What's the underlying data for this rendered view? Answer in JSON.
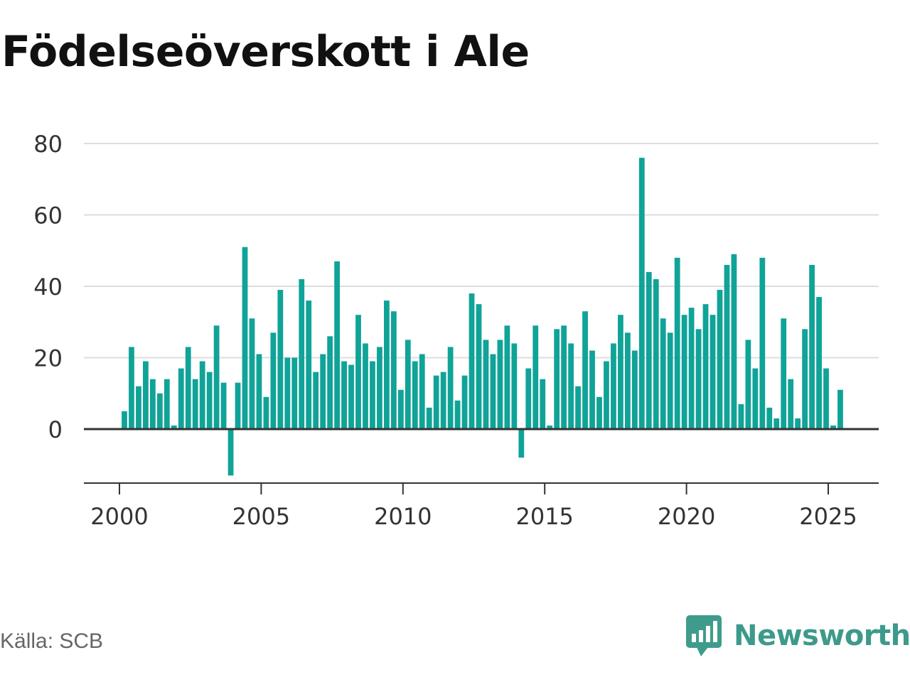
{
  "header": {
    "title": "Födelseöverskott i Ale"
  },
  "footer": {
    "source": "Källa: SCB",
    "brand": "Newsworthy"
  },
  "colors": {
    "bar": "#10a398",
    "grid": "#dddddd",
    "axis": "#333333",
    "brand": "#3d9a8a",
    "logo_bg": "#3f9c8c"
  },
  "icons": {
    "logo": "chat-bubble-bar-chart-icon"
  },
  "chart_data": {
    "type": "bar",
    "title": "Födelseöverskott i Ale",
    "xlabel": "",
    "ylabel": "",
    "ylim": [
      -15,
      80
    ],
    "xlim": [
      1999.5,
      2026.8
    ],
    "grid": true,
    "y_ticks": [
      0,
      20,
      40,
      60,
      80
    ],
    "x_ticks": [
      2000,
      2005,
      2010,
      2015,
      2020,
      2025
    ],
    "x_tick_labels": [
      "2000",
      "2005",
      "2010",
      "2015",
      "2020",
      "2025"
    ],
    "x": [
      "2000Q1",
      "2000Q2",
      "2000Q3",
      "2000Q4",
      "2001Q1",
      "2001Q2",
      "2001Q3",
      "2001Q4",
      "2002Q1",
      "2002Q2",
      "2002Q3",
      "2002Q4",
      "2003Q1",
      "2003Q2",
      "2003Q3",
      "2003Q4",
      "2004Q1",
      "2004Q2",
      "2004Q3",
      "2004Q4",
      "2005Q1",
      "2005Q2",
      "2005Q3",
      "2005Q4",
      "2006Q1",
      "2006Q2",
      "2006Q3",
      "2006Q4",
      "2007Q1",
      "2007Q2",
      "2007Q3",
      "2007Q4",
      "2008Q1",
      "2008Q2",
      "2008Q3",
      "2008Q4",
      "2009Q1",
      "2009Q2",
      "2009Q3",
      "2009Q4",
      "2010Q1",
      "2010Q2",
      "2010Q3",
      "2010Q4",
      "2011Q1",
      "2011Q2",
      "2011Q3",
      "2011Q4",
      "2012Q1",
      "2012Q2",
      "2012Q3",
      "2012Q4",
      "2013Q1",
      "2013Q2",
      "2013Q3",
      "2013Q4",
      "2014Q1",
      "2014Q2",
      "2014Q3",
      "2014Q4",
      "2015Q1",
      "2015Q2",
      "2015Q3",
      "2015Q4",
      "2016Q1",
      "2016Q2",
      "2016Q3",
      "2016Q4",
      "2017Q1",
      "2017Q2",
      "2017Q3",
      "2017Q4",
      "2018Q1",
      "2018Q2",
      "2018Q3",
      "2018Q4",
      "2019Q1",
      "2019Q2",
      "2019Q3",
      "2019Q4",
      "2020Q1",
      "2020Q2",
      "2020Q3",
      "2020Q4",
      "2021Q1",
      "2021Q2",
      "2021Q3",
      "2021Q4",
      "2022Q1",
      "2022Q2",
      "2022Q3",
      "2022Q4",
      "2023Q1",
      "2023Q2",
      "2023Q3",
      "2023Q4",
      "2024Q1",
      "2024Q2",
      "2024Q3",
      "2024Q4",
      "2025Q1",
      "2025Q2",
      "2025Q3"
    ],
    "values": [
      5,
      23,
      12,
      19,
      14,
      10,
      14,
      1,
      17,
      23,
      14,
      19,
      16,
      29,
      13,
      -13,
      13,
      51,
      31,
      21,
      9,
      27,
      39,
      20,
      20,
      42,
      36,
      16,
      21,
      26,
      47,
      19,
      18,
      32,
      24,
      19,
      23,
      36,
      33,
      11,
      25,
      19,
      21,
      6,
      15,
      16,
      23,
      8,
      15,
      38,
      35,
      25,
      21,
      25,
      29,
      24,
      -8,
      17,
      29,
      14,
      1,
      28,
      29,
      24,
      12,
      33,
      22,
      9,
      19,
      24,
      32,
      27,
      22,
      76,
      44,
      42,
      31,
      27,
      48,
      32,
      34,
      28,
      35,
      32,
      39,
      46,
      49,
      7,
      25,
      17,
      48,
      6,
      3,
      31,
      14,
      3,
      28,
      46,
      37,
      17,
      1,
      11,
      null
    ]
  }
}
